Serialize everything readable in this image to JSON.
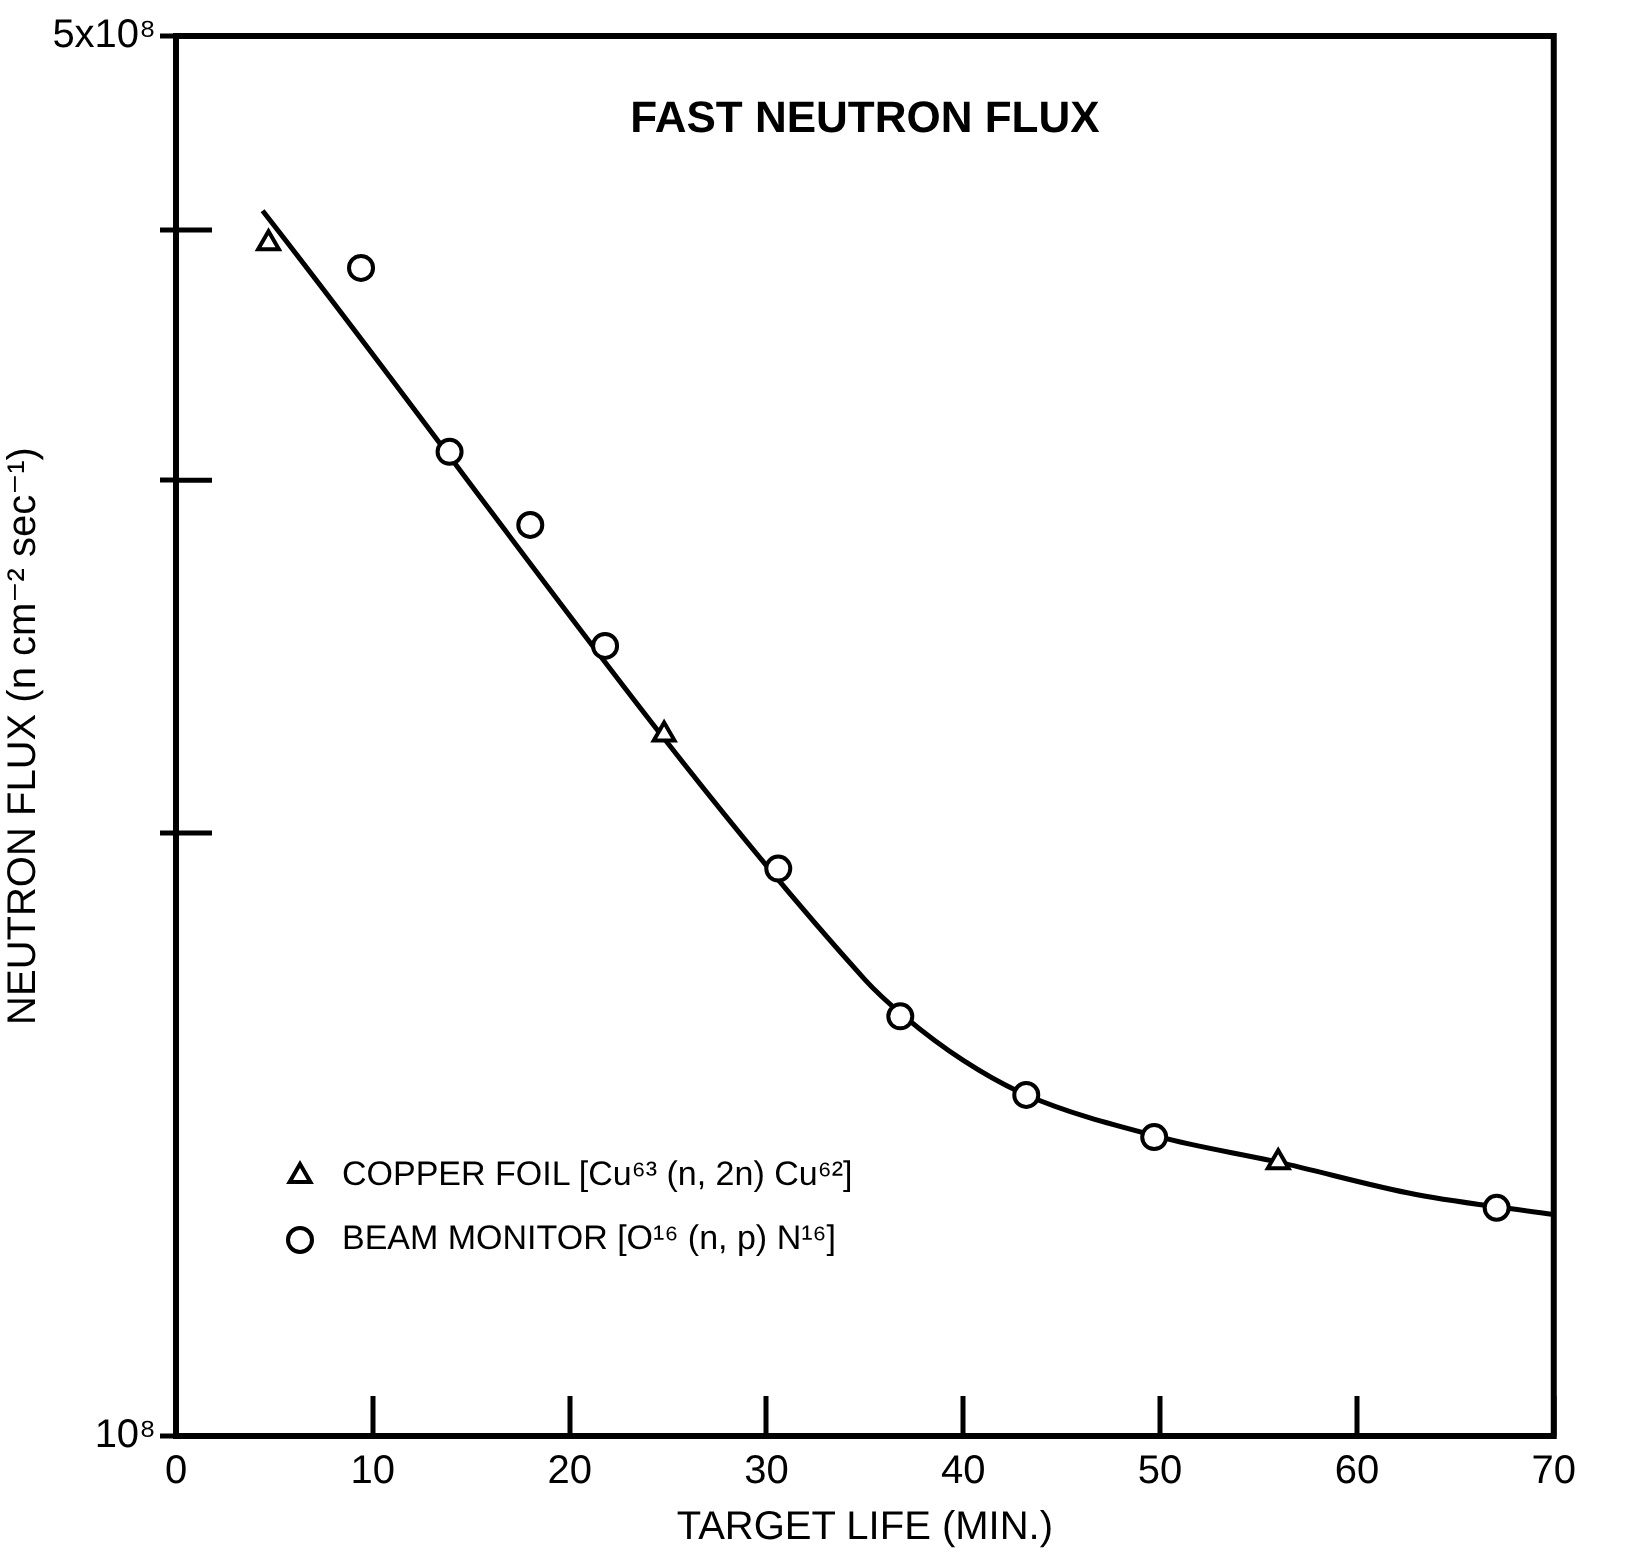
{
  "chart_data": {
    "type": "scatter",
    "title": "FAST NEUTRON FLUX",
    "xlabel": "TARGET LIFE (MIN.)",
    "ylabel": "NEUTRON FLUX (n cm⁻² sec⁻¹)",
    "xlim": [
      0,
      70
    ],
    "xticks": [
      0,
      10,
      20,
      30,
      40,
      50,
      60,
      70
    ],
    "ylim": [
      100000000,
      500000000
    ],
    "yticks": [
      {
        "value": 100000000,
        "label": "10⁸"
      },
      {
        "value": 200000000,
        "label": null
      },
      {
        "value": 300000000,
        "label": null
      },
      {
        "value": 400000000,
        "label": null
      },
      {
        "value": 500000000,
        "label": "5x10⁸"
      }
    ],
    "log": "y",
    "grid": false,
    "legend": "bottom left",
    "series": [
      {
        "name": "COPPER FOIL [Cu⁶³ (n, 2n) Cu⁶²]",
        "type": "scatter",
        "marker": "triangle",
        "color": "#000000",
        "x": [
          4.7,
          24.8,
          56.0
        ],
        "values": [
          394000000,
          224000000,
          137000000
        ]
      },
      {
        "name": "BEAM MONITOR [O¹⁶ (n, p) N¹⁶]",
        "type": "scatter",
        "marker": "circle",
        "color": "#000000",
        "x": [
          9.4,
          13.9,
          18.0,
          21.8,
          30.6,
          36.8,
          43.2,
          49.7,
          67.1
        ],
        "values": [
          383000000,
          310000000,
          285000000,
          248000000,
          192000000,
          162000000,
          148000000,
          141000000,
          130000000
        ]
      },
      {
        "type": "line",
        "marker": "none",
        "line_style": "solid",
        "color": "#000000",
        "x": [
          4.4,
          35.0,
          37.0,
          40.0,
          43.2,
          50.0,
          56.0,
          63.0,
          70.0
        ],
        "values": [
          409000000,
          169000000,
          162000000,
          154000000,
          148000000,
          141000000,
          137000000,
          132000000,
          129000000
        ]
      }
    ]
  }
}
